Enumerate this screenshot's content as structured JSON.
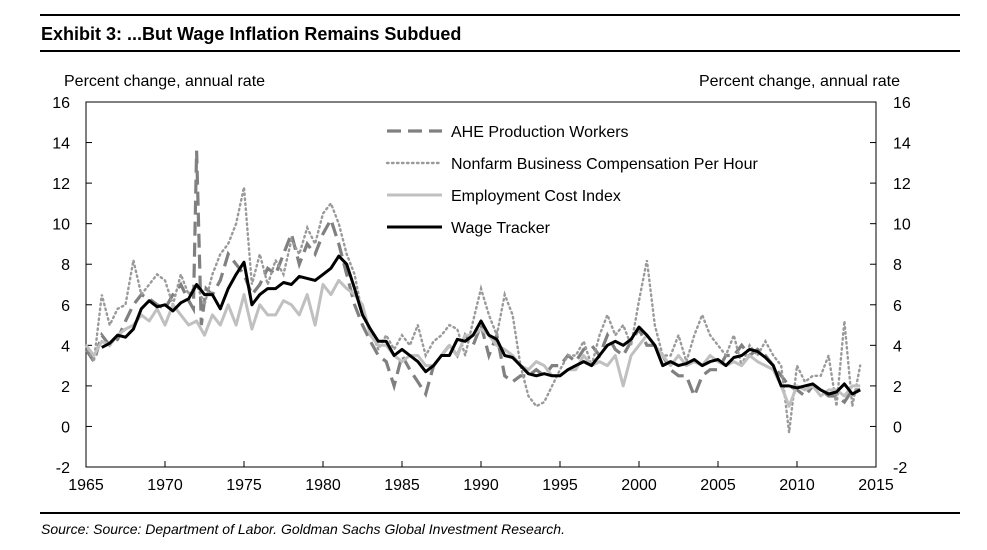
{
  "title": "Exhibit 3: ...But Wage Inflation Remains Subdued",
  "source": "Source: Source: Department of Labor. Goldman Sachs Global Investment Research.",
  "chart_data": {
    "type": "line",
    "title": "Exhibit 3: ...But Wage Inflation Remains Subdued",
    "ylabel_left": "Percent change, annual rate",
    "ylabel_right": "Percent change, annual rate",
    "xlim": [
      1965,
      2015
    ],
    "ylim": [
      -2,
      16
    ],
    "xticks": [
      1965,
      1970,
      1975,
      1980,
      1985,
      1990,
      1995,
      2000,
      2005,
      2010,
      2015
    ],
    "yticks": [
      -2,
      0,
      2,
      4,
      6,
      8,
      10,
      12,
      14,
      16
    ],
    "grid": false,
    "legend_position": "top-center",
    "series": [
      {
        "name": "AHE Production Workers",
        "style": "dashed",
        "color": "#808080",
        "x": [
          1965,
          1965.5,
          1966,
          1966.5,
          1967,
          1967.5,
          1968,
          1968.5,
          1969,
          1969.5,
          1970,
          1970.5,
          1971,
          1971.5,
          1971.8,
          1972,
          1972.3,
          1972.6,
          1973,
          1973.5,
          1974,
          1974.5,
          1975,
          1975.5,
          1976,
          1976.5,
          1977,
          1977.5,
          1978,
          1978.5,
          1979,
          1979.5,
          1980,
          1980.5,
          1981,
          1981.5,
          1982,
          1982.5,
          1983,
          1983.5,
          1984,
          1984.5,
          1985,
          1985.5,
          1986,
          1986.5,
          1987,
          1987.5,
          1988,
          1988.5,
          1989,
          1989.5,
          1990,
          1990.5,
          1991,
          1991.5,
          1992,
          1992.5,
          1993,
          1993.5,
          1994,
          1994.5,
          1995,
          1995.5,
          1996,
          1996.5,
          1997,
          1997.5,
          1998,
          1998.5,
          1999,
          1999.5,
          2000,
          2000.5,
          2001,
          2001.5,
          2002,
          2002.5,
          2003,
          2003.5,
          2004,
          2004.5,
          2005,
          2005.5,
          2006,
          2006.5,
          2007,
          2007.5,
          2008,
          2008.5,
          2009,
          2009.5,
          2010,
          2010.5,
          2011,
          2011.5,
          2012,
          2012.5,
          2013,
          2013.5,
          2014
        ],
        "values": [
          3.8,
          3.2,
          4.5,
          4.0,
          4.3,
          5.2,
          6.0,
          6.5,
          6.3,
          6.0,
          5.8,
          6.5,
          7.0,
          6.2,
          5.8,
          13.6,
          5.0,
          6.8,
          6.5,
          7.2,
          8.5,
          8.0,
          7.5,
          6.5,
          7.0,
          7.8,
          7.5,
          8.5,
          9.5,
          8.0,
          9.0,
          8.5,
          9.5,
          10.2,
          9.0,
          7.5,
          6.0,
          5.0,
          4.2,
          3.5,
          3.2,
          2.0,
          3.5,
          2.8,
          2.2,
          1.6,
          3.0,
          3.5,
          4.0,
          3.5,
          4.5,
          4.0,
          5.0,
          3.5,
          4.5,
          2.5,
          2.2,
          2.5,
          2.5,
          2.8,
          2.5,
          3.0,
          3.0,
          3.5,
          3.2,
          3.8,
          4.0,
          3.5,
          4.5,
          3.8,
          3.5,
          4.2,
          4.8,
          4.0,
          4.0,
          3.5,
          2.8,
          2.5,
          2.5,
          1.5,
          2.5,
          2.8,
          2.8,
          3.5,
          3.5,
          4.0,
          3.5,
          3.8,
          3.5,
          3.0,
          2.5,
          2.0,
          1.8,
          1.5,
          2.0,
          1.8,
          1.5,
          1.5,
          1.2,
          1.8,
          1.8
        ]
      },
      {
        "name": "Nonfarm Business Compensation Per Hour",
        "style": "dotted",
        "color": "#9a9a9a",
        "x": [
          1965,
          1965.5,
          1966,
          1966.5,
          1967,
          1967.5,
          1968,
          1968.5,
          1969,
          1969.5,
          1970,
          1970.5,
          1971,
          1971.5,
          1972,
          1972.5,
          1973,
          1973.5,
          1974,
          1974.5,
          1975,
          1975.5,
          1976,
          1976.5,
          1977,
          1977.5,
          1978,
          1978.5,
          1979,
          1979.5,
          1980,
          1980.5,
          1981,
          1981.5,
          1982,
          1982.5,
          1983,
          1983.5,
          1984,
          1984.5,
          1985,
          1985.5,
          1986,
          1986.5,
          1987,
          1987.5,
          1988,
          1988.5,
          1989,
          1989.5,
          1990,
          1990.5,
          1991,
          1991.5,
          1992,
          1992.5,
          1993,
          1993.5,
          1994,
          1994.5,
          1995,
          1995.5,
          1996,
          1996.5,
          1997,
          1997.5,
          1998,
          1998.5,
          1999,
          1999.5,
          2000,
          2000.5,
          2001,
          2001.5,
          2002,
          2002.5,
          2003,
          2003.5,
          2004,
          2004.5,
          2005,
          2005.5,
          2006,
          2006.5,
          2007,
          2007.5,
          2008,
          2008.5,
          2009,
          2009.5,
          2010,
          2010.5,
          2011,
          2011.5,
          2012,
          2012.5,
          2013,
          2013.5,
          2014
        ],
        "values": [
          4.0,
          3.2,
          6.5,
          5.0,
          5.8,
          6.0,
          8.2,
          6.5,
          7.0,
          7.5,
          7.2,
          6.0,
          7.5,
          6.5,
          7.0,
          6.0,
          7.5,
          8.5,
          9.0,
          10.0,
          11.8,
          7.0,
          8.5,
          7.0,
          8.2,
          7.5,
          9.2,
          8.5,
          9.8,
          9.0,
          10.5,
          11.0,
          10.0,
          8.5,
          7.5,
          5.5,
          4.8,
          3.8,
          4.5,
          3.8,
          4.5,
          4.0,
          5.0,
          3.5,
          4.2,
          4.5,
          5.0,
          4.8,
          3.5,
          5.2,
          6.8,
          5.5,
          4.5,
          6.5,
          5.5,
          3.0,
          1.5,
          1.0,
          1.2,
          2.0,
          2.8,
          3.5,
          3.5,
          4.2,
          3.0,
          4.5,
          5.5,
          4.5,
          5.0,
          4.0,
          6.2,
          8.2,
          5.0,
          3.5,
          3.5,
          4.5,
          3.2,
          4.5,
          5.5,
          4.5,
          4.0,
          3.5,
          4.5,
          3.0,
          4.0,
          3.5,
          4.2,
          3.5,
          3.0,
          -0.3,
          3.0,
          2.2,
          2.5,
          2.5,
          3.5,
          1.0,
          5.2,
          1.0,
          3.0
        ]
      },
      {
        "name": "Employment Cost Index",
        "style": "solid",
        "color": "#c0c0c0",
        "x": [
          1965,
          1965.5,
          1966,
          1966.5,
          1967,
          1967.5,
          1968,
          1968.5,
          1969,
          1969.5,
          1970,
          1970.5,
          1971,
          1971.5,
          1972,
          1972.5,
          1973,
          1973.5,
          1974,
          1974.5,
          1975,
          1975.5,
          1976,
          1976.5,
          1977,
          1977.5,
          1978,
          1978.5,
          1979,
          1979.5,
          1980,
          1980.5,
          1981,
          1981.5,
          1982,
          1982.5,
          1983,
          1983.5,
          1984,
          1984.5,
          1985,
          1985.5,
          1986,
          1986.5,
          1987,
          1987.5,
          1988,
          1988.5,
          1989,
          1989.5,
          1990,
          1990.5,
          1991,
          1991.5,
          1992,
          1992.5,
          1993,
          1993.5,
          1994,
          1994.5,
          1995,
          1995.5,
          1996,
          1996.5,
          1997,
          1997.5,
          1998,
          1998.5,
          1999,
          1999.5,
          2000,
          2000.5,
          2001,
          2001.5,
          2002,
          2002.5,
          2003,
          2003.5,
          2004,
          2004.5,
          2005,
          2005.5,
          2006,
          2006.5,
          2007,
          2007.5,
          2008,
          2008.5,
          2009,
          2009.5,
          2010,
          2010.5,
          2011,
          2011.5,
          2012,
          2012.5,
          2013,
          2013.5,
          2014
        ],
        "values": [
          4.0,
          3.5,
          4.2,
          4.0,
          4.5,
          4.8,
          5.0,
          5.5,
          5.2,
          5.8,
          5.0,
          6.0,
          5.5,
          5.0,
          5.2,
          4.5,
          5.5,
          5.0,
          6.0,
          5.0,
          6.5,
          4.8,
          6.0,
          5.5,
          5.5,
          6.2,
          6.0,
          5.5,
          6.5,
          5.0,
          7.0,
          6.5,
          7.2,
          6.8,
          6.5,
          6.0,
          4.5,
          4.0,
          4.0,
          3.5,
          3.2,
          3.5,
          3.5,
          3.0,
          3.0,
          3.5,
          4.0,
          3.5,
          4.5,
          4.5,
          4.8,
          4.5,
          4.0,
          3.8,
          3.5,
          3.0,
          2.8,
          3.2,
          3.0,
          2.5,
          2.5,
          2.8,
          2.8,
          3.5,
          3.0,
          3.2,
          3.0,
          3.5,
          2.0,
          3.5,
          4.0,
          4.5,
          4.0,
          3.5,
          3.0,
          3.5,
          3.0,
          3.2,
          3.0,
          3.5,
          3.2,
          3.0,
          3.2,
          3.0,
          3.5,
          3.2,
          3.0,
          2.8,
          2.0,
          1.0,
          2.0,
          1.8,
          2.0,
          1.5,
          1.8,
          1.8,
          1.5,
          2.0,
          2.0
        ]
      },
      {
        "name": "Wage Tracker",
        "style": "solid",
        "color": "#000000",
        "x": [
          1966,
          1966.5,
          1967,
          1967.5,
          1968,
          1968.5,
          1969,
          1969.5,
          1970,
          1970.5,
          1971,
          1971.5,
          1972,
          1972.5,
          1973,
          1973.5,
          1974,
          1974.5,
          1975,
          1975.5,
          1976,
          1976.5,
          1977,
          1977.5,
          1978,
          1978.5,
          1979,
          1979.5,
          1980,
          1980.5,
          1981,
          1981.5,
          1982,
          1982.5,
          1983,
          1983.5,
          1984,
          1984.5,
          1985,
          1985.5,
          1986,
          1986.5,
          1987,
          1987.5,
          1988,
          1988.5,
          1989,
          1989.5,
          1990,
          1990.5,
          1991,
          1991.5,
          1992,
          1992.5,
          1993,
          1993.5,
          1994,
          1994.5,
          1995,
          1995.5,
          1996,
          1996.5,
          1997,
          1997.5,
          1998,
          1998.5,
          1999,
          1999.5,
          2000,
          2000.5,
          2001,
          2001.5,
          2002,
          2002.5,
          2003,
          2003.5,
          2004,
          2004.5,
          2005,
          2005.5,
          2006,
          2006.5,
          2007,
          2007.5,
          2008,
          2008.5,
          2009,
          2009.5,
          2010,
          2010.5,
          2011,
          2011.5,
          2012,
          2012.5,
          2013,
          2013.5,
          2014
        ],
        "values": [
          3.9,
          4.1,
          4.5,
          4.4,
          4.8,
          5.8,
          6.2,
          5.9,
          6.0,
          5.7,
          6.1,
          6.3,
          7.0,
          6.5,
          6.5,
          5.8,
          6.8,
          7.5,
          8.1,
          6.0,
          6.5,
          6.8,
          6.8,
          7.1,
          7.0,
          7.4,
          7.3,
          7.2,
          7.5,
          7.8,
          8.4,
          8.0,
          6.8,
          5.5,
          4.8,
          4.2,
          4.2,
          3.5,
          3.8,
          3.5,
          3.2,
          2.7,
          3.0,
          3.5,
          3.5,
          4.3,
          4.2,
          4.5,
          5.2,
          4.5,
          4.3,
          3.5,
          3.4,
          3.0,
          2.6,
          2.5,
          2.6,
          2.5,
          2.5,
          2.8,
          3.0,
          3.2,
          3.0,
          3.5,
          4.0,
          4.2,
          4.0,
          4.3,
          4.9,
          4.5,
          4.0,
          3.0,
          3.2,
          3.0,
          3.1,
          3.3,
          3.0,
          3.2,
          3.3,
          3.0,
          3.4,
          3.5,
          3.8,
          3.7,
          3.4,
          3.0,
          2.0,
          2.0,
          1.9,
          2.0,
          2.1,
          1.8,
          1.6,
          1.7,
          2.1,
          1.6,
          1.8
        ]
      }
    ]
  }
}
